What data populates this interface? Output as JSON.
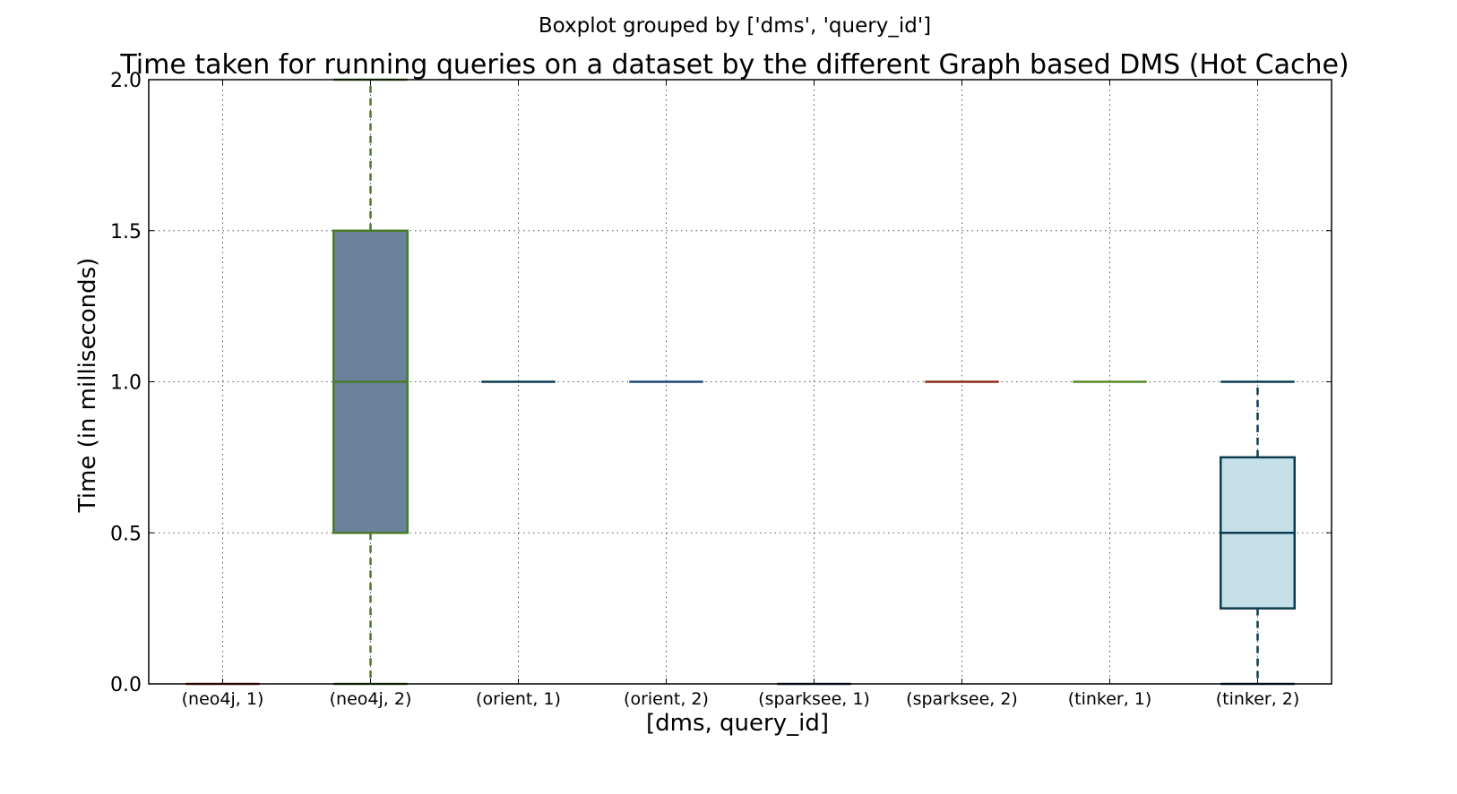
{
  "chart_data": {
    "type": "boxplot",
    "suptitle": "Boxplot grouped by ['dms', 'query_id']",
    "title": "Time taken for running queries on a dataset by the different Graph based DMS (Hot Cache)",
    "xlabel": "[dms, query_id]",
    "ylabel": "Time (in milliseconds)",
    "ylim": [
      0,
      2
    ],
    "yticks": [
      "0.0",
      "0.5",
      "1.0",
      "1.5",
      "2.0"
    ],
    "grid": true,
    "categories": [
      "(neo4j, 1)",
      "(neo4j, 2)",
      "(orient, 1)",
      "(orient, 2)",
      "(sparksee, 1)",
      "(sparksee, 2)",
      "(tinker, 1)",
      "(tinker, 2)"
    ],
    "boxes": [
      {
        "whisker_low": 0,
        "q1": 0,
        "median": 0,
        "q3": 0,
        "whisker_high": 0,
        "color": "#8b2a1a",
        "fill": "none",
        "whisker_style": "solid"
      },
      {
        "whisker_low": 0,
        "q1": 0.5,
        "median": 1.0,
        "q3": 1.5,
        "whisker_high": 2.0,
        "color": "#4a7a2a",
        "fill": "#6a829c",
        "whisker_style": "dashed"
      },
      {
        "whisker_low": 1.0,
        "q1": 1.0,
        "median": 1.0,
        "q3": 1.0,
        "whisker_high": 1.0,
        "color": "#0d3b4f",
        "fill": "none",
        "whisker_style": "solid"
      },
      {
        "whisker_low": 1.0,
        "q1": 1.0,
        "median": 1.0,
        "q3": 1.0,
        "whisker_high": 1.0,
        "color": "#1a4a7a",
        "fill": "none",
        "whisker_style": "solid"
      },
      {
        "whisker_low": 0,
        "q1": 0,
        "median": 0,
        "q3": 0,
        "whisker_high": 0,
        "color": "#2a3a4a",
        "fill": "none",
        "whisker_style": "solid"
      },
      {
        "whisker_low": 1.0,
        "q1": 1.0,
        "median": 1.0,
        "q3": 1.0,
        "whisker_high": 1.0,
        "color": "#8b2a1a",
        "fill": "none",
        "whisker_style": "solid"
      },
      {
        "whisker_low": 1.0,
        "q1": 1.0,
        "median": 1.0,
        "q3": 1.0,
        "whisker_high": 1.0,
        "color": "#5a8a2a",
        "fill": "none",
        "whisker_style": "solid"
      },
      {
        "whisker_low": 0,
        "q1": 0.25,
        "median": 0.5,
        "q3": 0.75,
        "whisker_high": 1.0,
        "color": "#0d3b4f",
        "fill": "#c5e0e8",
        "whisker_style": "dashed"
      }
    ]
  }
}
